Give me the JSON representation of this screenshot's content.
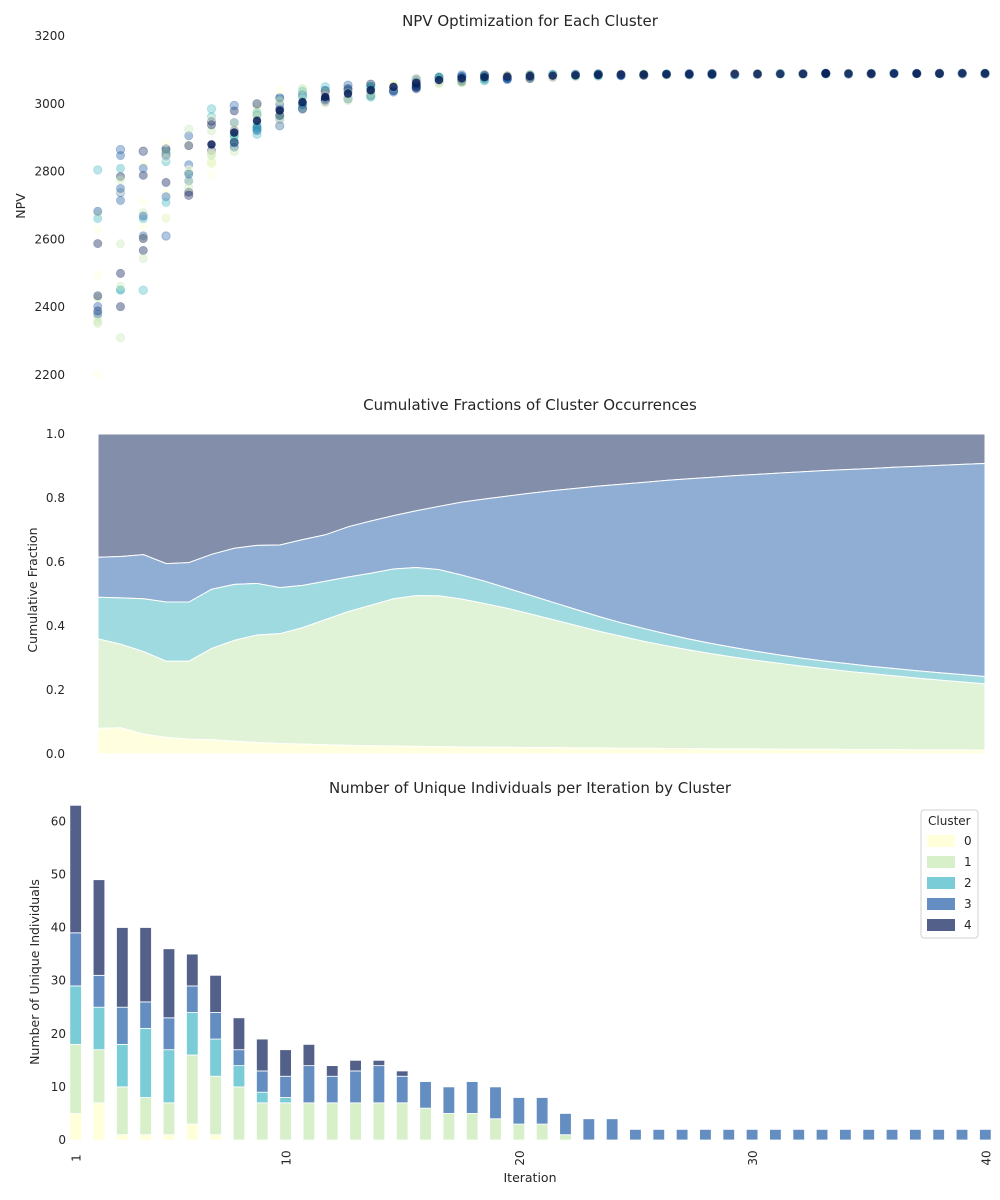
{
  "chart_data": [
    {
      "type": "scatter",
      "title": "NPV Optimization for Each Cluster",
      "xlabel": "",
      "ylabel": "NPV",
      "xlim": [
        0,
        40
      ],
      "ylim": [
        2200,
        3200
      ],
      "yticks": [
        2200,
        2400,
        2600,
        2800,
        3000,
        3200
      ],
      "grid": false,
      "colors": [
        "#ffffd9",
        "#c7e9b4",
        "#41b6c4",
        "#225ea8",
        "#081d58"
      ],
      "iterations": [
        1,
        2,
        3,
        4,
        5,
        6,
        7,
        8,
        9,
        10,
        11,
        12,
        13,
        14,
        15,
        16,
        17,
        18,
        19,
        20,
        21,
        22,
        23,
        24,
        25,
        26,
        27,
        28,
        29,
        30,
        31,
        32,
        33,
        34,
        35,
        36,
        37,
        38,
        39,
        40
      ],
      "npv_min": [
        2200,
        2310,
        2450,
        2610,
        2730,
        2790,
        2860,
        2910,
        2935,
        2985,
        3000,
        3010,
        3020,
        3035,
        3045,
        3055,
        3062,
        3068,
        3072,
        3075,
        3078,
        3080,
        3082,
        3083,
        3084,
        3085,
        3085,
        3086,
        3086,
        3087,
        3087,
        3087,
        3088,
        3088,
        3088,
        3088,
        3089,
        3089,
        3089,
        3089
      ],
      "npv_max": [
        2805,
        2865,
        2860,
        2885,
        2925,
        2985,
        2995,
        3000,
        3040,
        3045,
        3050,
        3055,
        3058,
        3060,
        3075,
        3080,
        3085,
        3085,
        3085,
        3086,
        3087,
        3087,
        3088,
        3088,
        3088,
        3088,
        3089,
        3089,
        3089,
        3089,
        3089,
        3089,
        3090,
        3090,
        3090,
        3090,
        3090,
        3090,
        3090,
        3090
      ],
      "npv_center": [
        2560,
        2700,
        2740,
        2810,
        2840,
        2880,
        2915,
        2950,
        2980,
        3005,
        3020,
        3030,
        3040,
        3050,
        3062,
        3070,
        3075,
        3078,
        3080,
        3082,
        3083,
        3084,
        3085,
        3086,
        3086,
        3087,
        3087,
        3087,
        3088,
        3088,
        3088,
        3088,
        3089,
        3089,
        3089,
        3089,
        3089,
        3089,
        3090,
        3090
      ]
    },
    {
      "type": "area",
      "title": "Cumulative Fractions of Cluster Occurrences",
      "xlabel": "",
      "ylabel": "Cumulative Fraction",
      "xlim": [
        1,
        40
      ],
      "ylim": [
        0,
        1.0
      ],
      "yticks": [
        "0.0",
        "0.2",
        "0.4",
        "0.6",
        "0.8",
        "1.0"
      ],
      "grid": false,
      "x": [
        1,
        2,
        3,
        4,
        5,
        6,
        7,
        8,
        9,
        10,
        11,
        12,
        13,
        14,
        15,
        16,
        17,
        18,
        19,
        20,
        21,
        22,
        23,
        24,
        25,
        26,
        27,
        28,
        29,
        30,
        31,
        32,
        33,
        34,
        35,
        36,
        37,
        38,
        39,
        40
      ],
      "series": [
        {
          "color": "#ffffd9",
          "values": [
            0.08,
            0.082,
            0.062,
            0.052,
            0.046,
            0.045,
            0.04,
            0.036,
            0.033,
            0.031,
            0.029,
            0.027,
            0.026,
            0.025,
            0.024,
            0.023,
            0.022,
            0.021,
            0.021,
            0.02,
            0.02,
            0.019,
            0.019,
            0.018,
            0.018,
            0.017,
            0.017,
            0.016,
            0.016,
            0.016,
            0.015,
            0.015,
            0.015,
            0.014,
            0.014,
            0.014,
            0.013,
            0.013,
            0.013,
            0.012
          ]
        },
        {
          "color": "#c7e9b4",
          "values": [
            0.36,
            0.343,
            0.32,
            0.29,
            0.29,
            0.33,
            0.355,
            0.372,
            0.376,
            0.395,
            0.42,
            0.445,
            0.465,
            0.485,
            0.495,
            0.494,
            0.484,
            0.47,
            0.455,
            0.438,
            0.42,
            0.402,
            0.384,
            0.368,
            0.352,
            0.338,
            0.325,
            0.313,
            0.302,
            0.292,
            0.283,
            0.274,
            0.266,
            0.258,
            0.251,
            0.244,
            0.237,
            0.231,
            0.225,
            0.219
          ]
        },
        {
          "color": "#41b6c4",
          "values": [
            0.49,
            0.488,
            0.485,
            0.475,
            0.475,
            0.515,
            0.53,
            0.533,
            0.52,
            0.527,
            0.54,
            0.553,
            0.565,
            0.578,
            0.583,
            0.576,
            0.559,
            0.54,
            0.518,
            0.496,
            0.474,
            0.452,
            0.43,
            0.41,
            0.392,
            0.375,
            0.359,
            0.345,
            0.332,
            0.32,
            0.309,
            0.299,
            0.29,
            0.282,
            0.274,
            0.267,
            0.26,
            0.254,
            0.248,
            0.242
          ]
        },
        {
          "color": "#225ea8",
          "values": [
            0.615,
            0.617,
            0.623,
            0.595,
            0.598,
            0.624,
            0.643,
            0.652,
            0.653,
            0.67,
            0.685,
            0.71,
            0.728,
            0.745,
            0.76,
            0.774,
            0.787,
            0.797,
            0.806,
            0.815,
            0.823,
            0.83,
            0.837,
            0.843,
            0.849,
            0.855,
            0.86,
            0.865,
            0.87,
            0.874,
            0.878,
            0.882,
            0.886,
            0.889,
            0.892,
            0.896,
            0.899,
            0.902,
            0.905,
            0.908
          ]
        },
        {
          "color": "#081d58",
          "values": [
            1,
            1,
            1,
            1,
            1,
            1,
            1,
            1,
            1,
            1,
            1,
            1,
            1,
            1,
            1,
            1,
            1,
            1,
            1,
            1,
            1,
            1,
            1,
            1,
            1,
            1,
            1,
            1,
            1,
            1,
            1,
            1,
            1,
            1,
            1,
            1,
            1,
            1,
            1,
            1
          ]
        }
      ]
    },
    {
      "type": "bar",
      "stacked": true,
      "title": "Number of Unique Individuals per Iteration by Cluster",
      "xlabel": "Iteration",
      "ylabel": "Number of Unique Individuals",
      "ylim": [
        0,
        64
      ],
      "yticks": [
        "0",
        "10",
        "20",
        "30",
        "40",
        "50",
        "60"
      ],
      "xtick_labels": [
        "1",
        "10",
        "20",
        "30",
        "40"
      ],
      "legend": {
        "title": "Cluster",
        "labels": [
          "0",
          "1",
          "2",
          "3",
          "4"
        ],
        "position": "top-right"
      },
      "categories": [
        1,
        2,
        3,
        4,
        5,
        6,
        7,
        8,
        9,
        10,
        11,
        12,
        13,
        14,
        15,
        16,
        17,
        18,
        19,
        20,
        21,
        22,
        23,
        24,
        25,
        26,
        27,
        28,
        29,
        30,
        31,
        32,
        33,
        34,
        35,
        36,
        37,
        38,
        39,
        40
      ],
      "series": [
        {
          "name": "0",
          "color": "#ffffd9",
          "values": [
            5,
            7,
            1,
            1,
            1,
            3,
            1,
            0,
            0,
            0,
            0,
            0,
            0,
            0,
            0,
            0,
            0,
            0,
            0,
            0,
            0,
            0,
            0,
            0,
            0,
            0,
            0,
            0,
            0,
            0,
            0,
            0,
            0,
            0,
            0,
            0,
            0,
            0,
            0,
            0
          ]
        },
        {
          "name": "1",
          "color": "#c7e9b4",
          "values": [
            13,
            10,
            9,
            7,
            6,
            13,
            11,
            10,
            7,
            7,
            7,
            7,
            7,
            7,
            7,
            6,
            5,
            5,
            4,
            3,
            3,
            1,
            0,
            0,
            0,
            0,
            0,
            0,
            0,
            0,
            0,
            0,
            0,
            0,
            0,
            0,
            0,
            0,
            0,
            0
          ]
        },
        {
          "name": "2",
          "color": "#41b6c4",
          "values": [
            11,
            8,
            8,
            13,
            10,
            8,
            7,
            4,
            2,
            1,
            0,
            0,
            0,
            0,
            0,
            0,
            0,
            0,
            0,
            0,
            0,
            0,
            0,
            0,
            0,
            0,
            0,
            0,
            0,
            0,
            0,
            0,
            0,
            0,
            0,
            0,
            0,
            0,
            0,
            0
          ]
        },
        {
          "name": "3",
          "color": "#225ea8",
          "values": [
            10,
            6,
            7,
            5,
            6,
            5,
            5,
            3,
            4,
            4,
            7,
            5,
            6,
            7,
            5,
            5,
            5,
            6,
            6,
            5,
            5,
            4,
            4,
            4,
            2,
            2,
            2,
            2,
            2,
            2,
            2,
            2,
            2,
            2,
            2,
            2,
            2,
            2,
            2,
            2
          ]
        },
        {
          "name": "4",
          "color": "#081d58",
          "values": [
            24,
            18,
            15,
            14,
            13,
            6,
            7,
            6,
            6,
            5,
            4,
            2,
            2,
            1,
            1,
            0,
            0,
            0,
            0,
            0,
            0,
            0,
            0,
            0,
            0,
            0,
            0,
            0,
            0,
            0,
            0,
            0,
            0,
            0,
            0,
            0,
            0,
            0,
            0,
            0
          ]
        }
      ]
    }
  ]
}
